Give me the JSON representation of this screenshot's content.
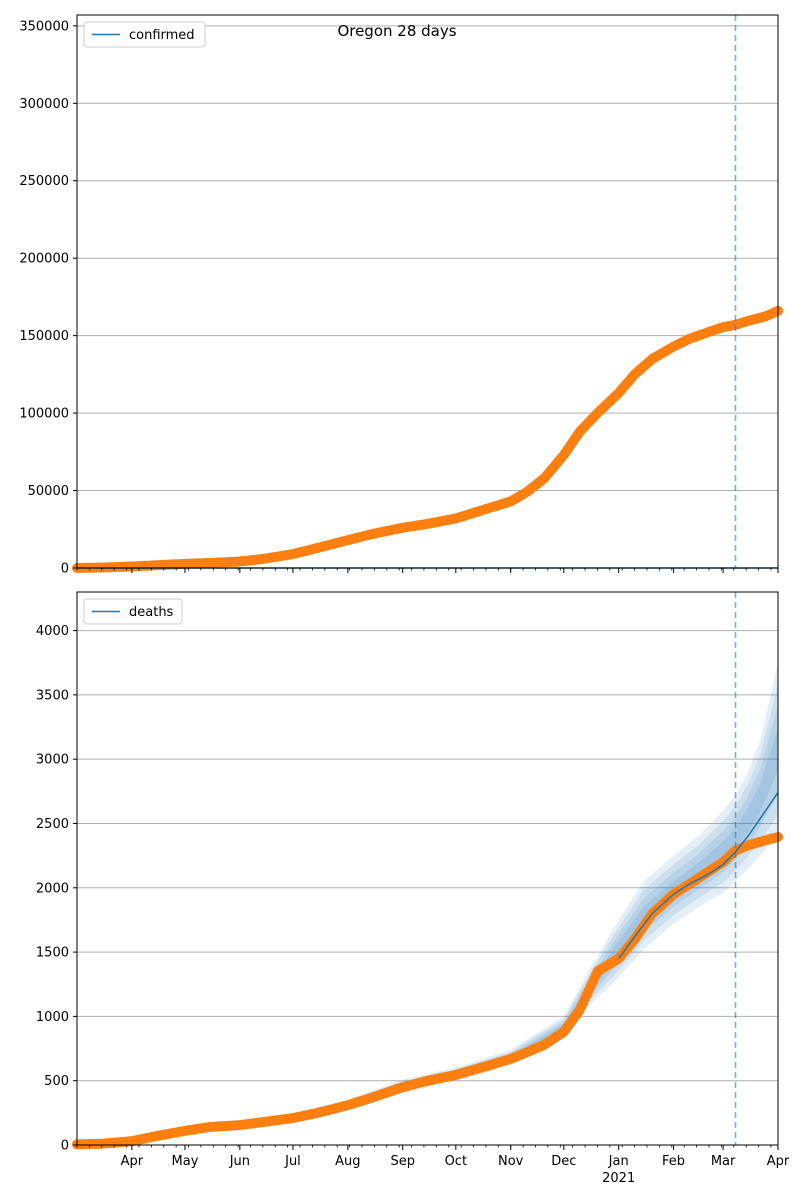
{
  "chart_data": [
    {
      "type": "line",
      "title": "Oregon 28 days",
      "xlabel": "",
      "ylabel": "",
      "x_range": [
        "2020-03-01",
        "2021-04-01"
      ],
      "ylim": [
        0,
        357000
      ],
      "yticks": [
        0,
        50000,
        100000,
        150000,
        200000,
        250000,
        300000,
        350000
      ],
      "grid": "y",
      "legend": {
        "placement": "top-left",
        "entries": [
          "confirmed"
        ]
      },
      "series": [
        {
          "name": "confirmed",
          "kind": "model-line",
          "color": "#1f77b4",
          "x": [
            "2020-03-01",
            "2021-04-01"
          ],
          "y": [
            0,
            0
          ]
        },
        {
          "kind": "observed-points",
          "color": "#ff7f0e",
          "x": [
            "2020-03-01",
            "2020-03-15",
            "2020-04-01",
            "2020-04-15",
            "2020-05-01",
            "2020-05-15",
            "2020-06-01",
            "2020-06-15",
            "2020-07-01",
            "2020-07-15",
            "2020-08-01",
            "2020-08-15",
            "2020-09-01",
            "2020-09-15",
            "2020-10-01",
            "2020-10-15",
            "2020-11-01",
            "2020-11-10",
            "2020-11-20",
            "2020-12-01",
            "2020-12-10",
            "2020-12-20",
            "2021-01-01",
            "2021-01-10",
            "2021-01-20",
            "2021-02-01",
            "2021-02-10",
            "2021-02-20",
            "2021-03-01",
            "2021-03-08",
            "2021-03-15",
            "2021-03-25",
            "2021-04-01"
          ],
          "y": [
            0,
            300,
            1000,
            1800,
            2700,
            3300,
            4200,
            6000,
            9000,
            13000,
            18000,
            22000,
            26000,
            28500,
            32000,
            37000,
            43000,
            49000,
            58000,
            73000,
            88000,
            100000,
            113000,
            125000,
            135000,
            143000,
            148000,
            152000,
            155500,
            157000,
            159500,
            162500,
            166000
          ]
        }
      ],
      "vline_date": "2021-03-08"
    },
    {
      "type": "line",
      "title": "",
      "xlabel": "",
      "ylabel": "",
      "x_range": [
        "2020-03-01",
        "2021-04-01"
      ],
      "ylim": [
        0,
        4300
      ],
      "yticks": [
        0,
        500,
        1000,
        1500,
        2000,
        2500,
        3000,
        3500,
        4000
      ],
      "grid": "y",
      "legend": {
        "placement": "top-left",
        "entries": [
          "deaths"
        ]
      },
      "xticks": [
        {
          "date": "2020-04-01",
          "label": "Apr"
        },
        {
          "date": "2020-05-01",
          "label": "May"
        },
        {
          "date": "2020-06-01",
          "label": "Jun"
        },
        {
          "date": "2020-07-01",
          "label": "Jul"
        },
        {
          "date": "2020-08-01",
          "label": "Aug"
        },
        {
          "date": "2020-09-01",
          "label": "Sep"
        },
        {
          "date": "2020-10-01",
          "label": "Oct"
        },
        {
          "date": "2020-11-01",
          "label": "Nov"
        },
        {
          "date": "2020-12-01",
          "label": "Dec"
        },
        {
          "date": "2021-01-01",
          "label": "Jan",
          "sublabel": "2021"
        },
        {
          "date": "2021-02-01",
          "label": "Feb"
        },
        {
          "date": "2021-03-01",
          "label": "Mar"
        },
        {
          "date": "2021-04-01",
          "label": "Apr"
        }
      ],
      "series": [
        {
          "name": "deaths",
          "kind": "model-line",
          "color": "#1f77b4",
          "x": [
            "2021-01-01",
            "2021-01-10",
            "2021-01-20",
            "2021-02-01",
            "2021-02-10",
            "2021-02-20",
            "2021-03-01",
            "2021-03-08",
            "2021-03-15",
            "2021-03-22",
            "2021-04-01"
          ],
          "y": [
            1450,
            1620,
            1800,
            1950,
            2030,
            2100,
            2180,
            2280,
            2400,
            2540,
            2740
          ]
        },
        {
          "kind": "observed-points",
          "color": "#ff7f0e",
          "x": [
            "2020-03-01",
            "2020-03-15",
            "2020-04-01",
            "2020-04-15",
            "2020-05-01",
            "2020-05-15",
            "2020-06-01",
            "2020-06-15",
            "2020-07-01",
            "2020-07-15",
            "2020-08-01",
            "2020-08-15",
            "2020-09-01",
            "2020-09-15",
            "2020-10-01",
            "2020-10-15",
            "2020-11-01",
            "2020-11-10",
            "2020-11-20",
            "2020-12-01",
            "2020-12-10",
            "2020-12-20",
            "2021-01-01",
            "2021-01-10",
            "2021-01-20",
            "2021-02-01",
            "2021-02-10",
            "2021-02-20",
            "2021-03-01",
            "2021-03-08",
            "2021-03-15",
            "2021-03-25",
            "2021-04-01"
          ],
          "y": [
            5,
            10,
            30,
            70,
            110,
            140,
            155,
            180,
            210,
            250,
            310,
            370,
            450,
            500,
            545,
            600,
            670,
            720,
            780,
            880,
            1050,
            1350,
            1450,
            1600,
            1800,
            1950,
            2030,
            2120,
            2200,
            2290,
            2330,
            2370,
            2395
          ]
        },
        {
          "kind": "uncertainty-band",
          "color": "#1f77b4",
          "x": [
            "2020-08-01",
            "2020-09-01",
            "2020-10-01",
            "2020-11-01",
            "2020-12-01",
            "2020-12-15",
            "2021-01-01",
            "2021-01-15",
            "2021-02-01",
            "2021-02-15",
            "2021-03-01",
            "2021-03-08",
            "2021-03-15",
            "2021-03-22",
            "2021-04-01"
          ],
          "lower": [
            280,
            400,
            500,
            620,
            830,
            1080,
            1300,
            1520,
            1720,
            1850,
            1960,
            2050,
            2150,
            2250,
            2400
          ],
          "upper": [
            350,
            510,
            600,
            740,
            1000,
            1350,
            1750,
            2050,
            2250,
            2400,
            2600,
            2720,
            2900,
            3150,
            3750
          ]
        }
      ],
      "vline_date": "2021-03-08"
    }
  ]
}
